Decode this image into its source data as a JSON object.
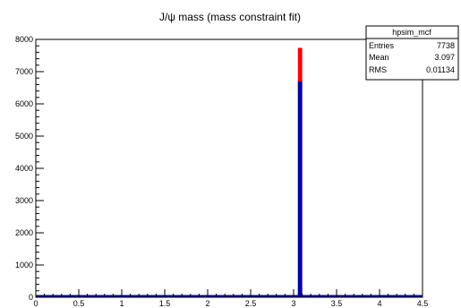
{
  "chart_data": {
    "type": "bar",
    "title": "J/ψ mass (mass constraint fit)",
    "xlim": [
      0,
      4.5
    ],
    "ylim": [
      0,
      8000
    ],
    "x_ticks": [
      0,
      0.5,
      1,
      1.5,
      2,
      2.5,
      3,
      3.5,
      4,
      4.5
    ],
    "x_tick_labels": [
      "0",
      "0.5",
      "1",
      "1.5",
      "2",
      "2.5",
      "3",
      "3.5",
      "4",
      "4.5"
    ],
    "y_ticks": [
      0,
      1000,
      2000,
      3000,
      4000,
      5000,
      6000,
      7000,
      8000
    ],
    "y_tick_labels": [
      "0",
      "1000",
      "2000",
      "3000",
      "4000",
      "5000",
      "6000",
      "7000",
      "8000"
    ],
    "grid": false,
    "bin_width": 0.05,
    "series": [
      {
        "color": "#0000aa",
        "bins": [
          {
            "x": 3.075,
            "value": 6700
          }
        ]
      },
      {
        "color": "#ff0000",
        "bins": [
          {
            "x": 3.075,
            "value": 7738
          }
        ]
      }
    ],
    "stats_box": {
      "name": "hpsim_mcf",
      "rows": [
        {
          "label": "Entries",
          "value": "7738"
        },
        {
          "label": "Mean",
          "value": "3.097"
        },
        {
          "label": "RMS",
          "value": "0.01134"
        }
      ]
    }
  }
}
